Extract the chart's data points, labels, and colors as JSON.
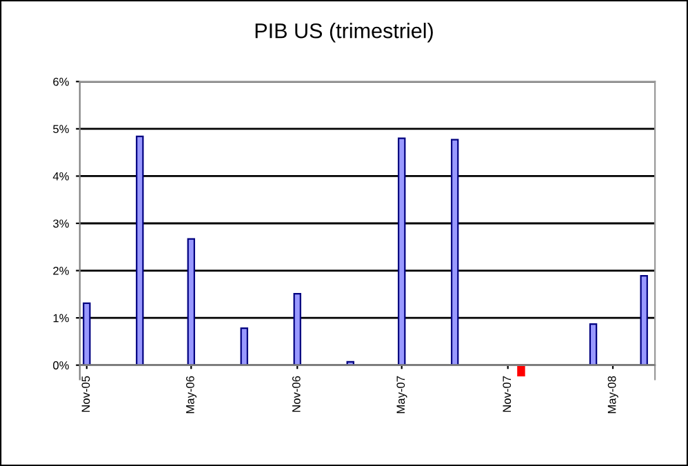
{
  "chart_data": {
    "type": "bar",
    "title": "PIB US (trimestriel)",
    "x": [
      "2005-11-01",
      "2006-02-01",
      "2006-05-01",
      "2006-08-01",
      "2006-11-01",
      "2007-02-01",
      "2007-05-01",
      "2007-08-01",
      "2007-11-24",
      "2008-03-28",
      "2008-06-24"
    ],
    "values": [
      1.31,
      4.84,
      2.67,
      0.78,
      1.51,
      0.07,
      4.8,
      4.77,
      -0.22,
      0.87,
      1.89
    ],
    "colors": [
      "#9999ff",
      "#9999ff",
      "#9999ff",
      "#9999ff",
      "#9999ff",
      "#9999ff",
      "#9999ff",
      "#9999ff",
      "#ff0000",
      "#9999ff",
      "#9999ff"
    ],
    "xlim": [
      "2005-10-20",
      "2008-07-13"
    ],
    "xticks": [
      {
        "value": "2005-11-01",
        "label": "Nov-05"
      },
      {
        "value": "2006-05-01",
        "label": "May-06"
      },
      {
        "value": "2006-11-01",
        "label": "Nov-06"
      },
      {
        "value": "2007-05-01",
        "label": "May-07"
      },
      {
        "value": "2007-11-01",
        "label": "Nov-07"
      },
      {
        "value": "2008-05-01",
        "label": "May-08"
      }
    ],
    "ylim": [
      -0.3,
      6
    ],
    "yticks": [
      {
        "value": 0,
        "label": "0%"
      },
      {
        "value": 1,
        "label": "1%"
      },
      {
        "value": 2,
        "label": "2%"
      },
      {
        "value": 3,
        "label": "3%"
      },
      {
        "value": 4,
        "label": "4%"
      },
      {
        "value": 5,
        "label": "5%"
      },
      {
        "value": 6,
        "label": "6%"
      }
    ],
    "grid": "y",
    "legend": false
  }
}
